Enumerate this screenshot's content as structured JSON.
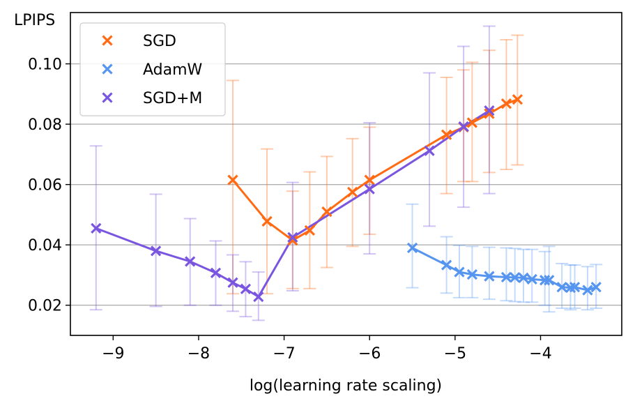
{
  "chart_data": {
    "type": "line",
    "xlabel": "log(learning rate scaling)",
    "ylabel": "LPIPS",
    "xlim": [
      -9.5,
      -3.05
    ],
    "ylim": [
      0.01,
      0.117
    ],
    "xticks": [
      -9,
      -8,
      -7,
      -6,
      -5,
      -4
    ],
    "xtick_labels": [
      "−9",
      "−8",
      "−7",
      "−6",
      "−5",
      "−4"
    ],
    "yticks": [
      0.02,
      0.04,
      0.06,
      0.08,
      0.1
    ],
    "ytick_labels": [
      "0.02",
      "0.04",
      "0.06",
      "0.08",
      "0.10"
    ],
    "grid": "horizontal",
    "legend_position": "top-left",
    "marker": "x",
    "series": [
      {
        "name": "SGD",
        "color": "#ff6a13",
        "x": [
          -7.6,
          -7.2,
          -6.9,
          -6.7,
          -6.5,
          -6.2,
          -6.0,
          -5.1,
          -4.9,
          -4.8,
          -4.6,
          -4.4,
          -4.27
        ],
        "y": [
          0.0615,
          0.0478,
          0.0415,
          0.0448,
          0.051,
          0.0575,
          0.0615,
          0.0765,
          0.079,
          0.0805,
          0.0835,
          0.0868,
          0.0882
        ],
        "lo": [
          0.0238,
          0.0238,
          0.0255,
          0.0255,
          0.0325,
          0.0395,
          0.0435,
          0.057,
          0.061,
          0.061,
          0.064,
          0.065,
          0.0665
        ],
        "hi": [
          0.0945,
          0.0718,
          0.0578,
          0.0642,
          0.0693,
          0.0752,
          0.079,
          0.0955,
          0.098,
          0.1005,
          0.1045,
          0.108,
          0.1095
        ]
      },
      {
        "name": "AdamW",
        "color": "#5595f0",
        "x": [
          -5.5,
          -5.1,
          -4.95,
          -4.8,
          -4.6,
          -4.4,
          -4.3,
          -4.2,
          -4.1,
          -3.95,
          -3.9,
          -3.75,
          -3.65,
          -3.6,
          -3.45,
          -3.35
        ],
        "y": [
          0.039,
          0.0333,
          0.031,
          0.0302,
          0.0296,
          0.0293,
          0.0292,
          0.0291,
          0.0286,
          0.0283,
          0.0283,
          0.026,
          0.0258,
          0.026,
          0.025,
          0.026
        ],
        "lo": [
          0.0258,
          0.024,
          0.0225,
          0.0225,
          0.022,
          0.0215,
          0.0212,
          0.021,
          0.021,
          0.02,
          0.0178,
          0.019,
          0.0185,
          0.019,
          0.0185,
          0.019
        ],
        "hi": [
          0.0535,
          0.0427,
          0.0398,
          0.0395,
          0.0392,
          0.039,
          0.0388,
          0.0385,
          0.0385,
          0.0378,
          0.0395,
          0.0338,
          0.0333,
          0.0333,
          0.0328,
          0.0335
        ]
      },
      {
        "name": "SGD+M",
        "color": "#7a55e0",
        "x": [
          -9.2,
          -8.5,
          -8.1,
          -7.8,
          -7.6,
          -7.45,
          -7.3,
          -6.9,
          -6.0,
          -5.3,
          -4.9,
          -4.6
        ],
        "y": [
          0.0455,
          0.038,
          0.0345,
          0.0307,
          0.0275,
          0.0254,
          0.0228,
          0.0425,
          0.0585,
          0.0712,
          0.0792,
          0.0845
        ],
        "lo": [
          0.0185,
          0.0196,
          0.02,
          0.02,
          0.018,
          0.0162,
          0.015,
          0.0248,
          0.037,
          0.0462,
          0.0525,
          0.057
        ],
        "hi": [
          0.0728,
          0.0568,
          0.0487,
          0.0413,
          0.0367,
          0.0344,
          0.031,
          0.0607,
          0.0805,
          0.097,
          0.1058,
          0.1125
        ]
      }
    ]
  }
}
